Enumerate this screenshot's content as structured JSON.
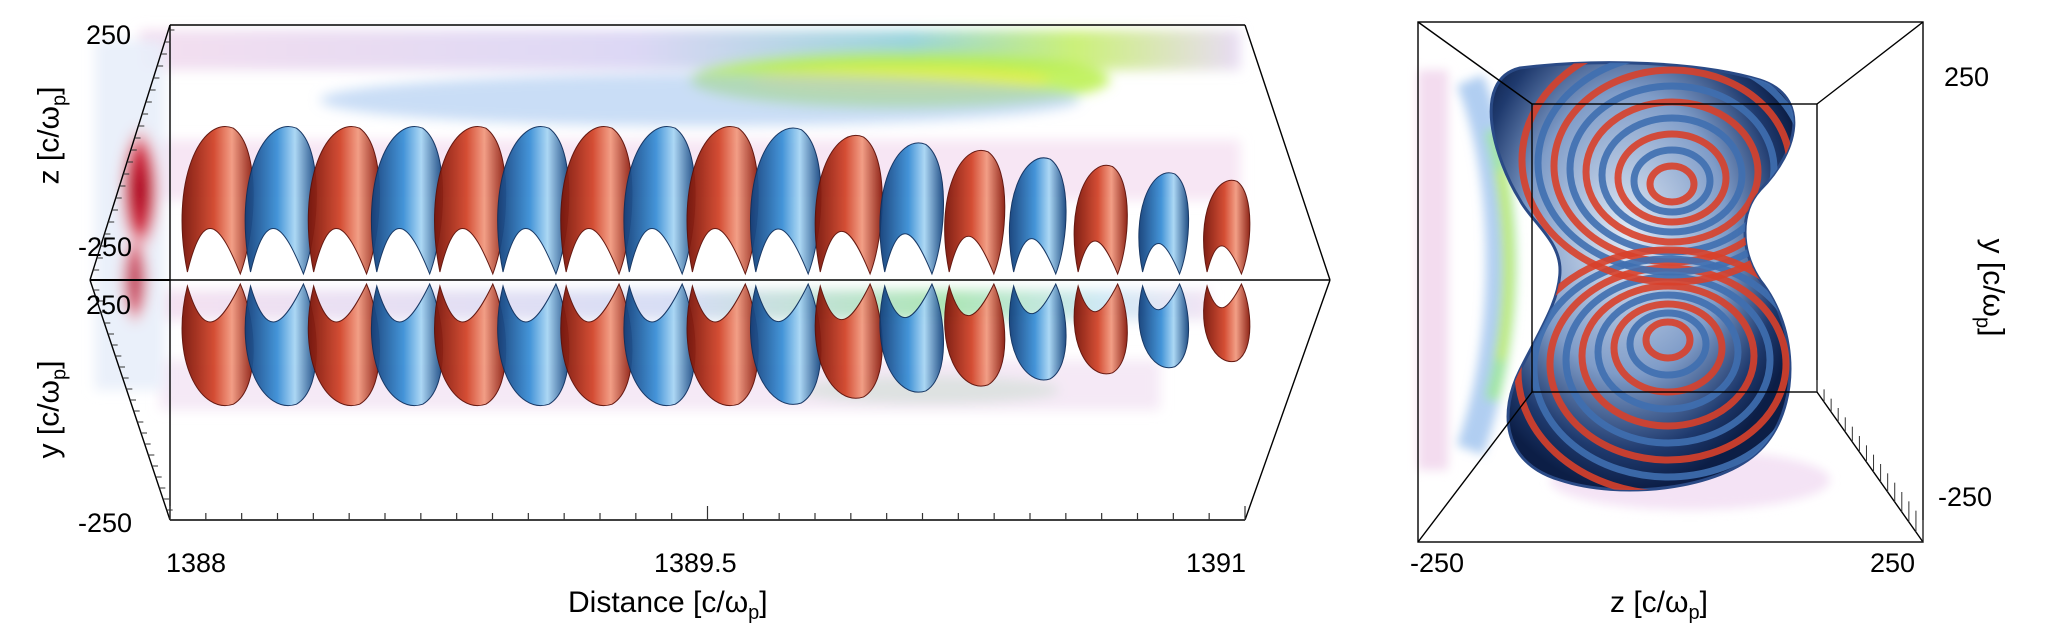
{
  "left_panel": {
    "z_ticks": [
      "250",
      "-250"
    ],
    "y_ticks": [
      "250",
      "-250"
    ],
    "x_ticks": [
      "1388",
      "1389.5",
      "1391"
    ],
    "z_label": "z [c/ω",
    "z_label_sub": "p",
    "z_label_end": "]",
    "y_label": "y [c/ω",
    "y_label_sub": "p",
    "y_label_end": "]",
    "x_label": "Distance [c/ω",
    "x_label_sub": "p",
    "x_label_end": "]"
  },
  "right_panel": {
    "y_ticks": [
      "250",
      "-250"
    ],
    "z_ticks": [
      "-250",
      "250"
    ],
    "y_label": "y [c/ω",
    "y_label_sub": "p",
    "y_label_end": "]",
    "z_label": "z [c/ω",
    "z_label_sub": "p",
    "z_label_end": "]"
  },
  "colors": {
    "positive_surface": "#c8321e",
    "negative_surface": "#2f7fc8",
    "density_low": "#f4dcef",
    "density_mid": "#7fb6e8",
    "density_high": "#b8f04a",
    "axis_line": "#000000"
  },
  "n_wavefronts": 17
}
